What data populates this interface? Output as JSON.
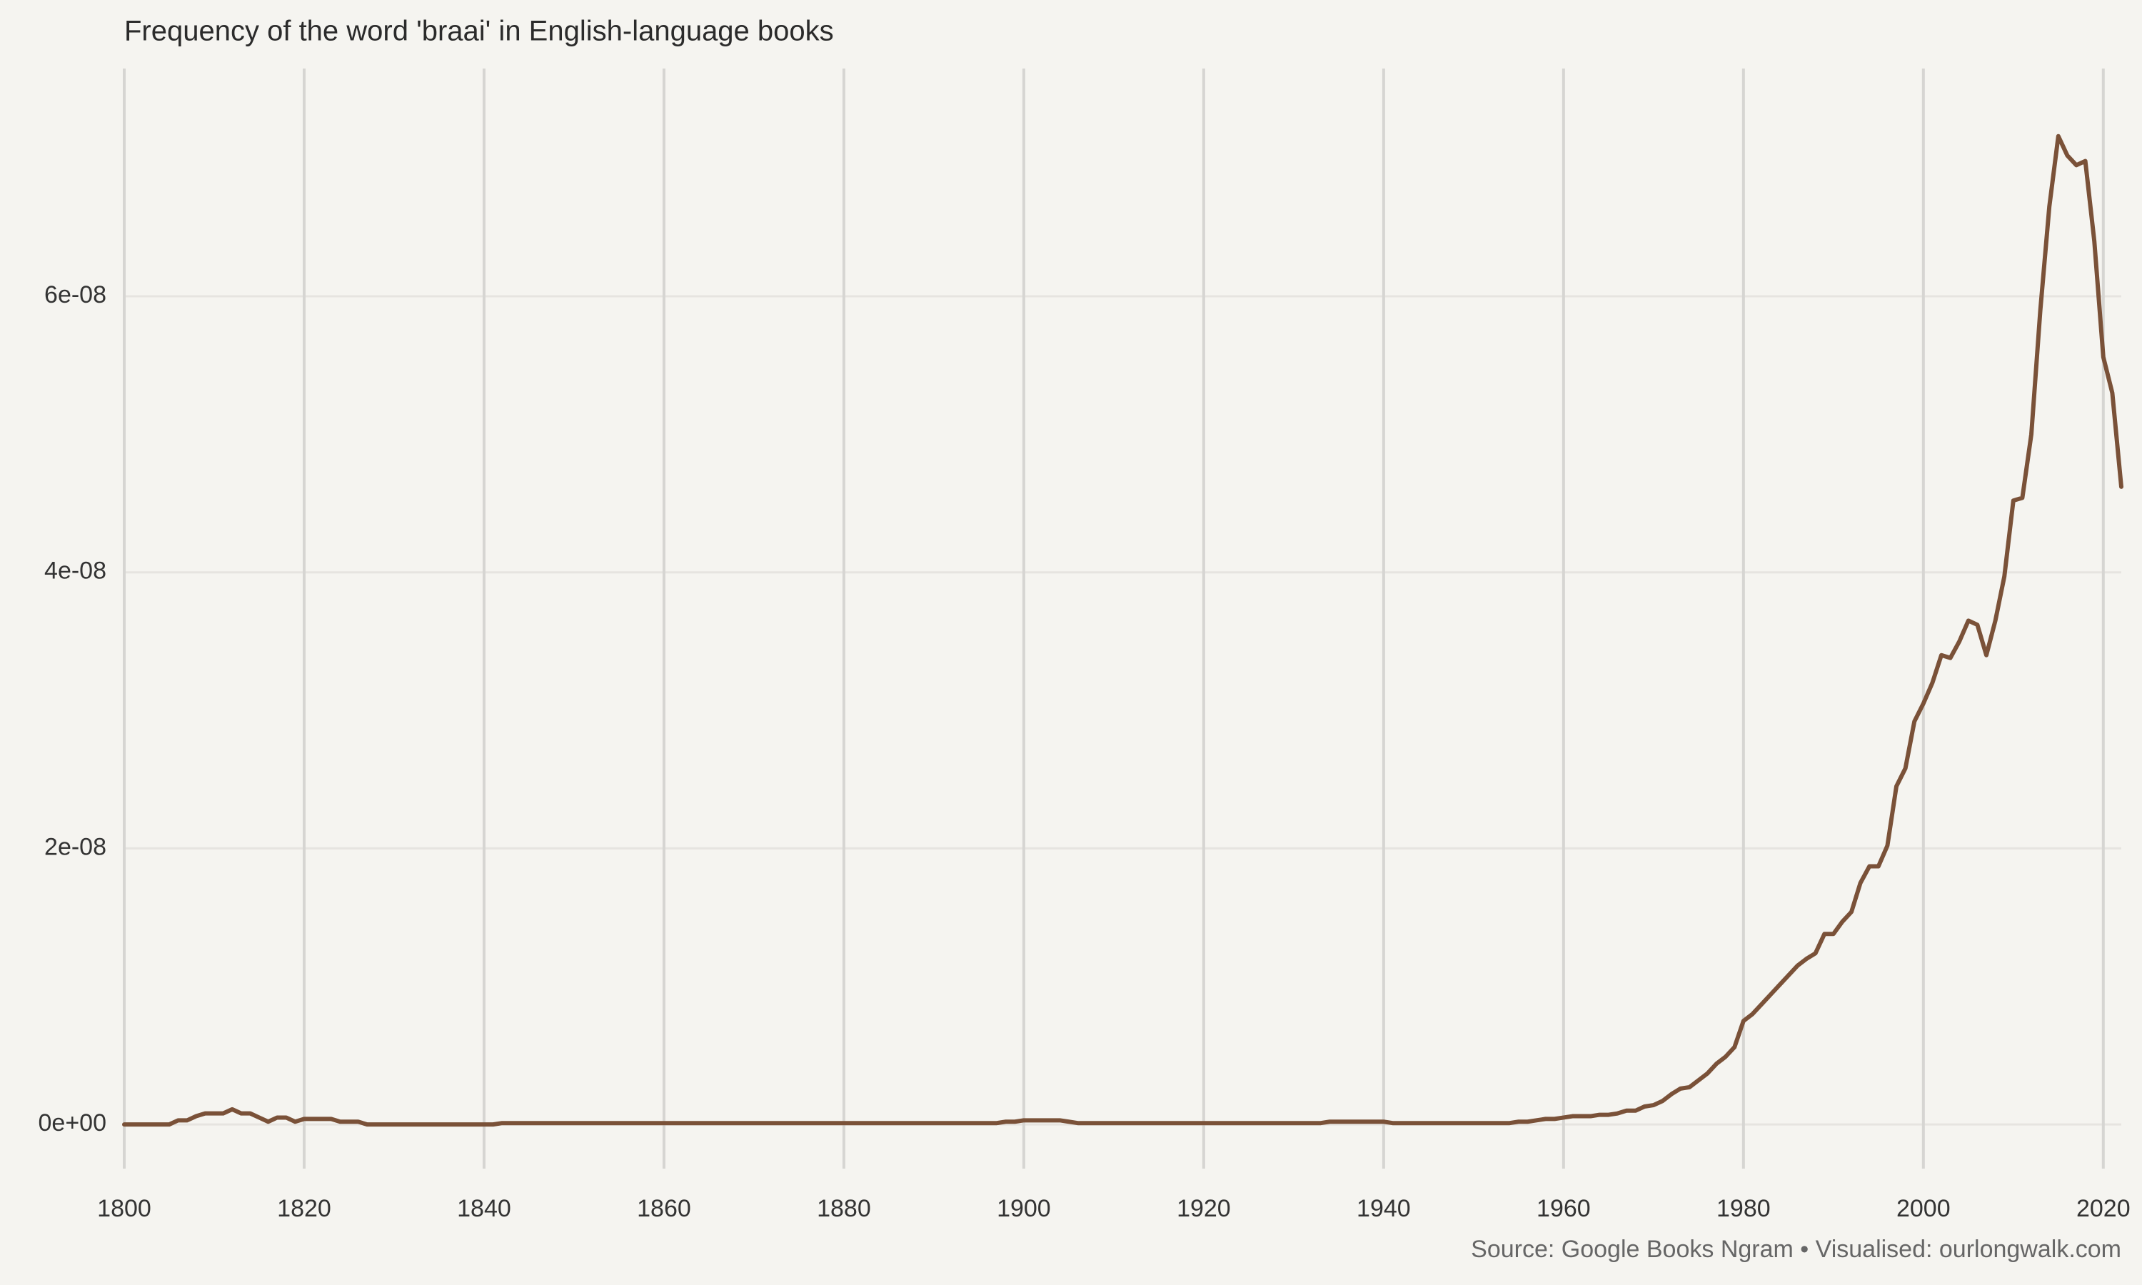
{
  "chart_data": {
    "type": "line",
    "title": "Frequency of the word 'braai' in English-language books",
    "caption": "Source: Google Books Ngram • Visualised: ourlongwalk.com",
    "color": "#7a5138",
    "grid": true,
    "xlim": [
      1800,
      2022
    ],
    "ylim": [
      -3.2e-09,
      7.65e-08
    ],
    "xticks": [
      1800,
      1820,
      1840,
      1860,
      1880,
      1900,
      1920,
      1940,
      1960,
      1980,
      2000,
      2020
    ],
    "yticks": [
      {
        "value": 0,
        "label": "0e+00"
      },
      {
        "value": 2e-08,
        "label": "2e-08"
      },
      {
        "value": 4e-08,
        "label": "4e-08"
      },
      {
        "value": 6e-08,
        "label": "6e-08"
      }
    ],
    "x": [
      1800,
      1801,
      1802,
      1803,
      1804,
      1805,
      1806,
      1807,
      1808,
      1809,
      1810,
      1811,
      1812,
      1813,
      1814,
      1815,
      1816,
      1817,
      1818,
      1819,
      1820,
      1821,
      1822,
      1823,
      1824,
      1825,
      1826,
      1827,
      1828,
      1829,
      1830,
      1831,
      1832,
      1833,
      1834,
      1835,
      1836,
      1837,
      1838,
      1839,
      1840,
      1841,
      1842,
      1843,
      1844,
      1845,
      1846,
      1847,
      1848,
      1849,
      1850,
      1851,
      1852,
      1853,
      1854,
      1855,
      1856,
      1857,
      1858,
      1859,
      1860,
      1861,
      1862,
      1863,
      1864,
      1865,
      1866,
      1867,
      1868,
      1869,
      1870,
      1871,
      1872,
      1873,
      1874,
      1875,
      1876,
      1877,
      1878,
      1879,
      1880,
      1881,
      1882,
      1883,
      1884,
      1885,
      1886,
      1887,
      1888,
      1889,
      1890,
      1891,
      1892,
      1893,
      1894,
      1895,
      1896,
      1897,
      1898,
      1899,
      1900,
      1901,
      1902,
      1903,
      1904,
      1905,
      1906,
      1907,
      1908,
      1909,
      1910,
      1911,
      1912,
      1913,
      1914,
      1915,
      1916,
      1917,
      1918,
      1919,
      1920,
      1921,
      1922,
      1923,
      1924,
      1925,
      1926,
      1927,
      1928,
      1929,
      1930,
      1931,
      1932,
      1933,
      1934,
      1935,
      1936,
      1937,
      1938,
      1939,
      1940,
      1941,
      1942,
      1943,
      1944,
      1945,
      1946,
      1947,
      1948,
      1949,
      1950,
      1951,
      1952,
      1953,
      1954,
      1955,
      1956,
      1957,
      1958,
      1959,
      1960,
      1961,
      1962,
      1963,
      1964,
      1965,
      1966,
      1967,
      1968,
      1969,
      1970,
      1971,
      1972,
      1973,
      1974,
      1975,
      1976,
      1977,
      1978,
      1979,
      1980,
      1981,
      1982,
      1983,
      1984,
      1985,
      1986,
      1987,
      1988,
      1989,
      1990,
      1991,
      1992,
      1993,
      1994,
      1995,
      1996,
      1997,
      1998,
      1999,
      2000,
      2001,
      2002,
      2003,
      2004,
      2005,
      2006,
      2007,
      2008,
      2009,
      2010,
      2011,
      2012,
      2013,
      2014,
      2015,
      2016,
      2017,
      2018,
      2019,
      2020,
      2021,
      2022
    ],
    "values": [
      0,
      0,
      0,
      0,
      0,
      0,
      3e-10,
      3e-10,
      6e-10,
      8e-10,
      8e-10,
      8e-10,
      1.1e-09,
      8e-10,
      8e-10,
      5e-10,
      2e-10,
      5e-10,
      5e-10,
      2e-10,
      4e-10,
      4e-10,
      4e-10,
      4e-10,
      2e-10,
      2e-10,
      2e-10,
      0,
      0,
      0,
      0,
      0,
      0,
      0,
      0,
      0,
      0,
      0,
      0,
      0,
      0,
      0,
      1e-10,
      1e-10,
      1e-10,
      1e-10,
      1e-10,
      1e-10,
      1e-10,
      1e-10,
      1e-10,
      1e-10,
      1e-10,
      1e-10,
      1e-10,
      1e-10,
      1e-10,
      1e-10,
      1e-10,
      1e-10,
      1e-10,
      1e-10,
      1e-10,
      1e-10,
      1e-10,
      1e-10,
      1e-10,
      1e-10,
      1e-10,
      1e-10,
      1e-10,
      1e-10,
      1e-10,
      1e-10,
      1e-10,
      1e-10,
      1e-10,
      1e-10,
      1e-10,
      1e-10,
      1e-10,
      1e-10,
      1e-10,
      1e-10,
      1e-10,
      1e-10,
      1e-10,
      1e-10,
      1e-10,
      1e-10,
      1e-10,
      1e-10,
      1e-10,
      1e-10,
      1e-10,
      1e-10,
      1e-10,
      1e-10,
      2e-10,
      2e-10,
      3e-10,
      3e-10,
      3e-10,
      3e-10,
      3e-10,
      2e-10,
      1e-10,
      1e-10,
      1e-10,
      1e-10,
      1e-10,
      1e-10,
      1e-10,
      1e-10,
      1e-10,
      1e-10,
      1e-10,
      1e-10,
      1e-10,
      1e-10,
      1e-10,
      1e-10,
      1e-10,
      1e-10,
      1e-10,
      1e-10,
      1e-10,
      1e-10,
      1e-10,
      1e-10,
      1e-10,
      1e-10,
      1e-10,
      1e-10,
      2e-10,
      2e-10,
      2e-10,
      2e-10,
      2e-10,
      2e-10,
      2e-10,
      1e-10,
      1e-10,
      1e-10,
      1e-10,
      1e-10,
      1e-10,
      1e-10,
      1e-10,
      1e-10,
      1e-10,
      1e-10,
      1e-10,
      1e-10,
      1e-10,
      2e-10,
      2e-10,
      3e-10,
      4e-10,
      4e-10,
      5e-10,
      6e-10,
      6e-10,
      6e-10,
      7e-10,
      7e-10,
      8e-10,
      1e-09,
      1e-09,
      1.3e-09,
      1.4e-09,
      1.7e-09,
      2.2e-09,
      2.6e-09,
      2.7e-09,
      3.2e-09,
      3.7e-09,
      4.4e-09,
      4.9e-09,
      5.6e-09,
      7.5e-09,
      8e-09,
      8.7e-09,
      9.4e-09,
      1.01e-08,
      1.08e-08,
      1.15e-08,
      1.2e-08,
      1.24e-08,
      1.38e-08,
      1.38e-08,
      1.47e-08,
      1.54e-08,
      1.75e-08,
      1.87e-08,
      1.87e-08,
      2.02e-08,
      2.45e-08,
      2.58e-08,
      2.92e-08,
      3.05e-08,
      3.2e-08,
      3.4e-08,
      3.38e-08,
      3.5e-08,
      3.65e-08,
      3.62e-08,
      3.4e-08,
      3.65e-08,
      3.97e-08,
      4.52e-08,
      4.54e-08,
      5e-08,
      5.9e-08,
      6.65e-08,
      7.16e-08,
      7.02e-08,
      6.95e-08,
      6.98e-08,
      6.4e-08,
      5.56e-08,
      5.3e-08,
      4.62e-08
    ]
  }
}
